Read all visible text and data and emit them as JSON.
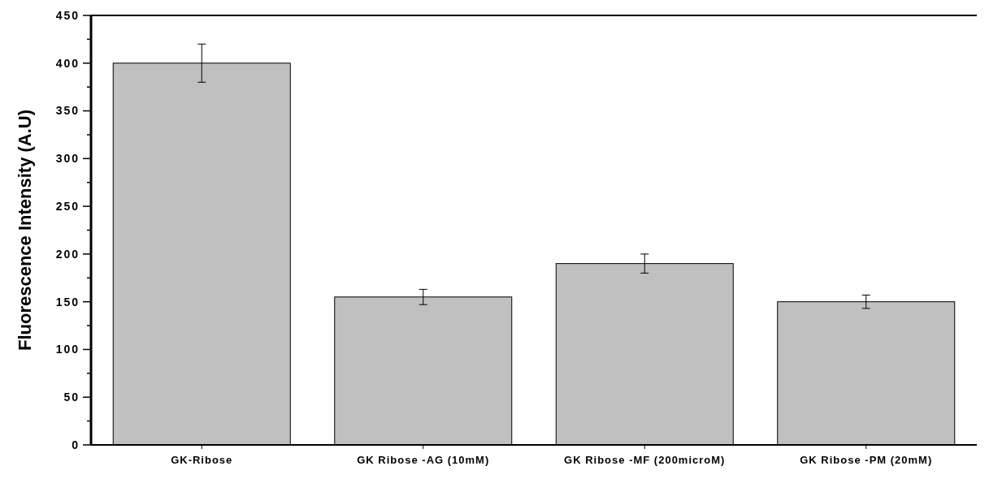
{
  "chart_data": {
    "type": "bar",
    "ylabel": "Fluorescence Intensity (A.U)",
    "categories": [
      "GK-Ribose",
      "GK Ribose -AG (10mM)",
      "GK Ribose -MF (200microM)",
      "GK Ribose -PM (20mM)"
    ],
    "values": [
      400,
      155,
      190,
      150
    ],
    "errors": [
      20,
      8,
      10,
      7
    ],
    "color": "#c0c0c0",
    "ylim": [
      0,
      450
    ],
    "yticks": [
      0,
      {
        "value": 25,
        "label": null
      },
      50,
      {
        "value": 75,
        "label": null
      },
      100,
      {
        "value": 125,
        "label": null
      },
      150,
      {
        "value": 175,
        "label": null
      },
      200,
      {
        "value": 225,
        "label": null
      },
      250,
      {
        "value": 275,
        "label": null
      },
      300,
      {
        "value": 325,
        "label": null
      },
      350,
      {
        "value": 375,
        "label": null
      },
      400,
      {
        "value": 425,
        "label": null
      },
      450
    ],
    "grid": false
  }
}
